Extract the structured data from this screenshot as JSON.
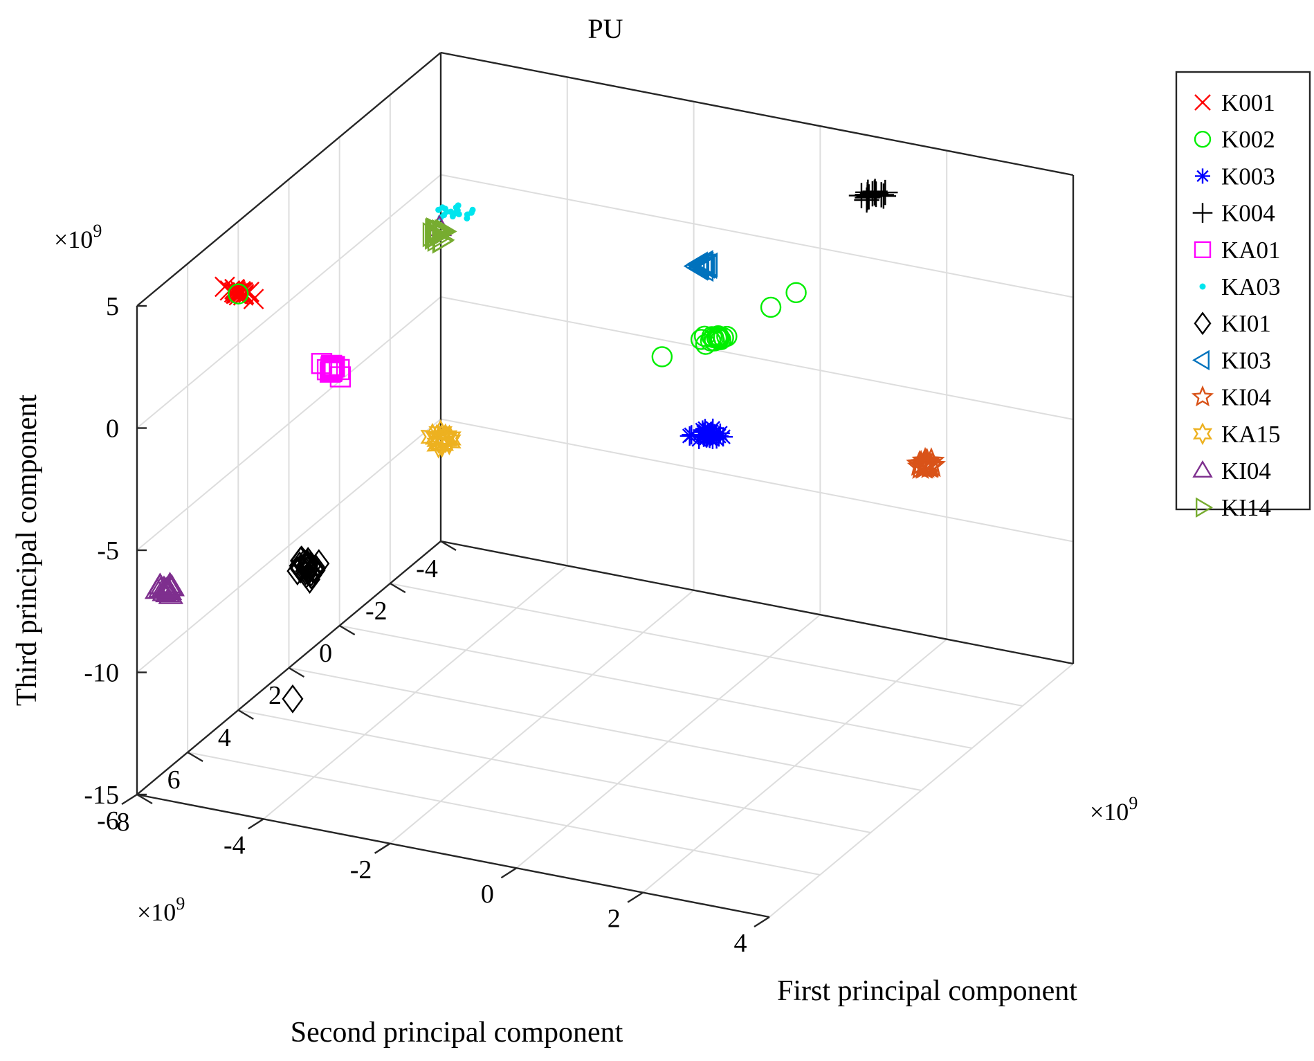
{
  "chart_data": {
    "type": "scatter",
    "subtype": "scatter3d",
    "title": "PU",
    "xlabel": "First principal component",
    "ylabel": "Second principal component",
    "zlabel": "Third principal component",
    "x_exponent": "×10^9",
    "y_exponent": "×10^9",
    "z_exponent": "×10^9",
    "xlim": [
      -6,
      4
    ],
    "ylim": [
      -4,
      8
    ],
    "zlim": [
      -15,
      5
    ],
    "x_ticks": [
      -6,
      -4,
      -2,
      0,
      2,
      4
    ],
    "y_ticks": [
      -4,
      -2,
      0,
      2,
      4,
      6,
      8
    ],
    "z_ticks": [
      -15,
      -10,
      -5,
      0,
      5
    ],
    "x_tick_labels": [
      "-6",
      "-4",
      "-2",
      "0",
      "2",
      "4"
    ],
    "y_tick_labels": [
      "-4",
      "-2",
      "0",
      "2",
      "4",
      "6",
      "8"
    ],
    "z_tick_labels": [
      "-15",
      "-10",
      "-5",
      "0",
      "5"
    ],
    "grid": true,
    "legend_position": "outside-right",
    "series": [
      {
        "name": "K001",
        "marker": "x",
        "color": "#ff0000",
        "center": [
          -5.6,
          5.0,
          3.2
        ],
        "spread": [
          0.35,
          0.25,
          0.3
        ],
        "count": 22
      },
      {
        "name": "K002",
        "marker": "circle",
        "color": "#00ee00",
        "center": [
          -0.5,
          -1.0,
          -1.4
        ],
        "spread": [
          0.3,
          0.2,
          0.35
        ],
        "count": 15,
        "extra_points": [
          [
            -1.3,
            -1.0,
            -2.5
          ],
          [
            0.5,
            -0.8,
            0.6
          ],
          [
            0.9,
            -0.8,
            1.4
          ],
          [
            -5.6,
            5.0,
            3.1
          ]
        ]
      },
      {
        "name": "K003",
        "marker": "asterisk",
        "color": "#0000ff",
        "center": [
          -1.2,
          -2.6,
          -7.0
        ],
        "spread": [
          0.35,
          0.2,
          0.35
        ],
        "count": 24
      },
      {
        "name": "K004",
        "marker": "plus",
        "color": "#000000",
        "center": [
          2.3,
          -0.3,
          6.5
        ],
        "spread": [
          0.25,
          0.15,
          0.35
        ],
        "count": 14
      },
      {
        "name": "KA01",
        "marker": "square",
        "color": "#ff00ff",
        "center": [
          -4.5,
          3.9,
          -0.4
        ],
        "spread": [
          0.25,
          0.15,
          0.25
        ],
        "count": 14
      },
      {
        "name": "KA03",
        "marker": "dot",
        "color": "#00e5ee",
        "center": [
          -2.8,
          3.4,
          6.5
        ],
        "spread": [
          0.35,
          0.25,
          0.3
        ],
        "count": 18
      },
      {
        "name": "KI01",
        "marker": "diamond",
        "color": "#000000",
        "center": [
          -5.4,
          2.7,
          -10.0
        ],
        "spread": [
          0.25,
          0.15,
          0.45
        ],
        "count": 22,
        "extra_points": [
          [
            -5.7,
            2.6,
            -15.6
          ]
        ]
      },
      {
        "name": "KI03",
        "marker": "triangle-left",
        "color": "#0072bd",
        "center": [
          -0.3,
          -0.2,
          2.4
        ],
        "spread": [
          0.2,
          0.15,
          0.25
        ],
        "count": 14
      },
      {
        "name": "KI04",
        "marker": "star5",
        "color": "#d95319",
        "center": [
          2.0,
          -3.2,
          -7.2
        ],
        "spread": [
          0.2,
          0.15,
          0.25
        ],
        "count": 16
      },
      {
        "name": "KA15",
        "marker": "star6",
        "color": "#edb120",
        "center": [
          -3.4,
          2.4,
          -4.0
        ],
        "spread": [
          0.2,
          0.15,
          0.3
        ],
        "count": 16
      },
      {
        "name": "KI04",
        "marker": "triangle-up",
        "color": "#7e2f8e",
        "center": [
          -6.3,
          6.0,
          -8.5
        ],
        "spread": [
          0.25,
          0.25,
          0.25
        ],
        "count": 18,
        "extra_points": [
          [
            -2.5,
            4.8,
            7.2
          ]
        ]
      },
      {
        "name": "KI14",
        "marker": "triangle-right",
        "color": "#77ac30",
        "center": [
          -2.5,
          4.8,
          6.9
        ],
        "spread": [
          0.2,
          0.15,
          0.3
        ],
        "count": 16
      }
    ]
  }
}
